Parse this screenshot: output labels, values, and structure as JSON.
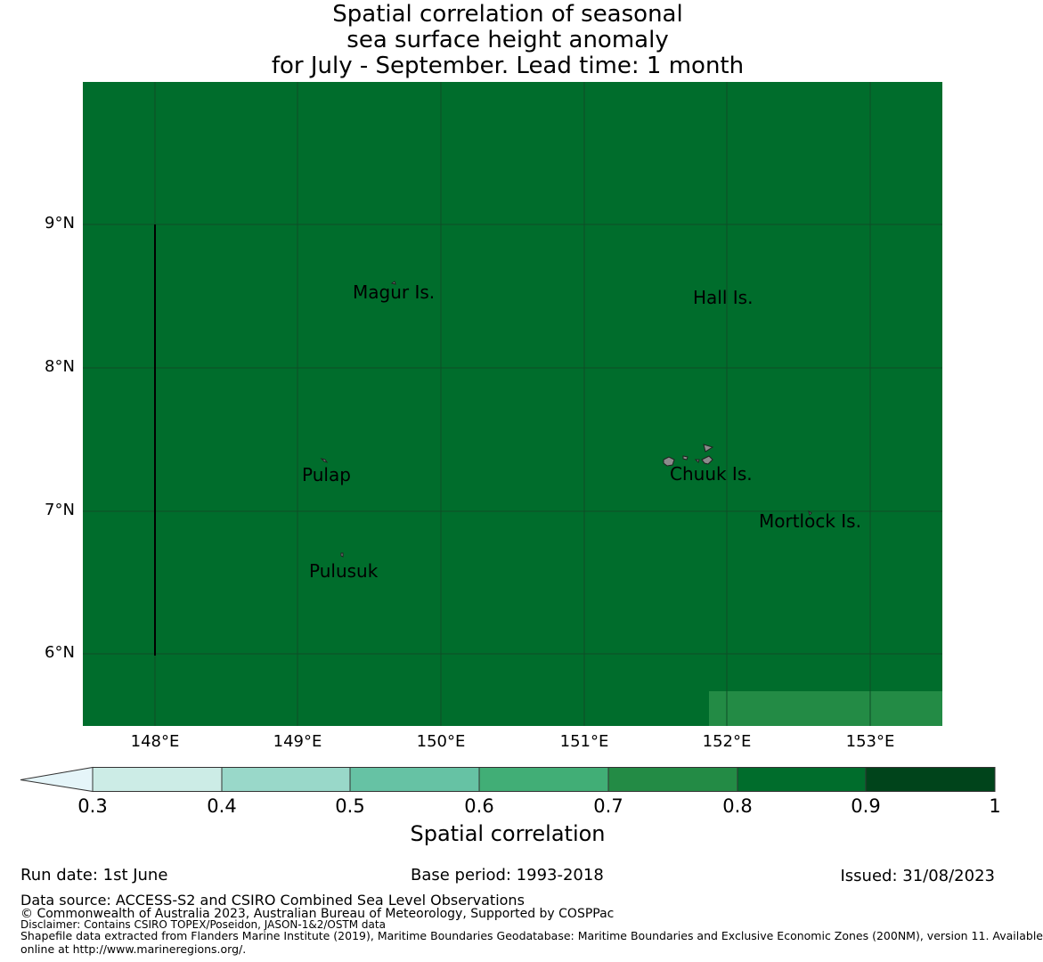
{
  "title": {
    "line1": "Spatial correlation of seasonal",
    "line2": "sea surface height anomaly",
    "line3": "for July - September. Lead time: 1 month"
  },
  "map": {
    "base_color": "#006d2c",
    "lower_right_color": "#238b45",
    "grid_color": "#0f4d26",
    "lat_labels": [
      "9°N",
      "8°N",
      "7°N",
      "6°N"
    ],
    "lon_labels": [
      "148°E",
      "149°E",
      "150°E",
      "151°E",
      "152°E",
      "153°E"
    ],
    "places": {
      "magur": "Magur Is.",
      "hall": "Hall Is.",
      "pulap": "Pulap",
      "chuuk": "Chuuk Is.",
      "mortlock": "Mortlock Is.",
      "pulusuk": "Pulusuk"
    }
  },
  "colorbar": {
    "colors": [
      "#e5f5f9",
      "#ccece6",
      "#99d8c9",
      "#66c2a4",
      "#41ae76",
      "#238b45",
      "#006d2c",
      "#00441b"
    ],
    "ticks": [
      "0.3",
      "0.4",
      "0.5",
      "0.6",
      "0.7",
      "0.8",
      "0.9",
      "1"
    ],
    "label": "Spatial correlation"
  },
  "footer": {
    "run_date": "Run date: 1st June",
    "base_period": "Base period: 1993-2018",
    "issued": "Issued: 31/08/2023",
    "data_source": "Data source: ACCESS-S2 and CSIRO Combined Sea Level Observations",
    "copyright": "© Commonwealth of Australia 2023, Australian Bureau of Meteorology, Supported by COSPPac",
    "disclaimer": "Disclaimer: Contains CSIRO TOPEX/Poseidon, JASON-1&2/OSTM data",
    "shapefile1": "Shapefile data extracted from Flanders Marine Institute (2019), Maritime Boundaries Geodatabase: Maritime Boundaries and Exclusive Economic Zones (200NM), version 11. Available",
    "shapefile2": "online at http://www.marineregions.org/."
  }
}
